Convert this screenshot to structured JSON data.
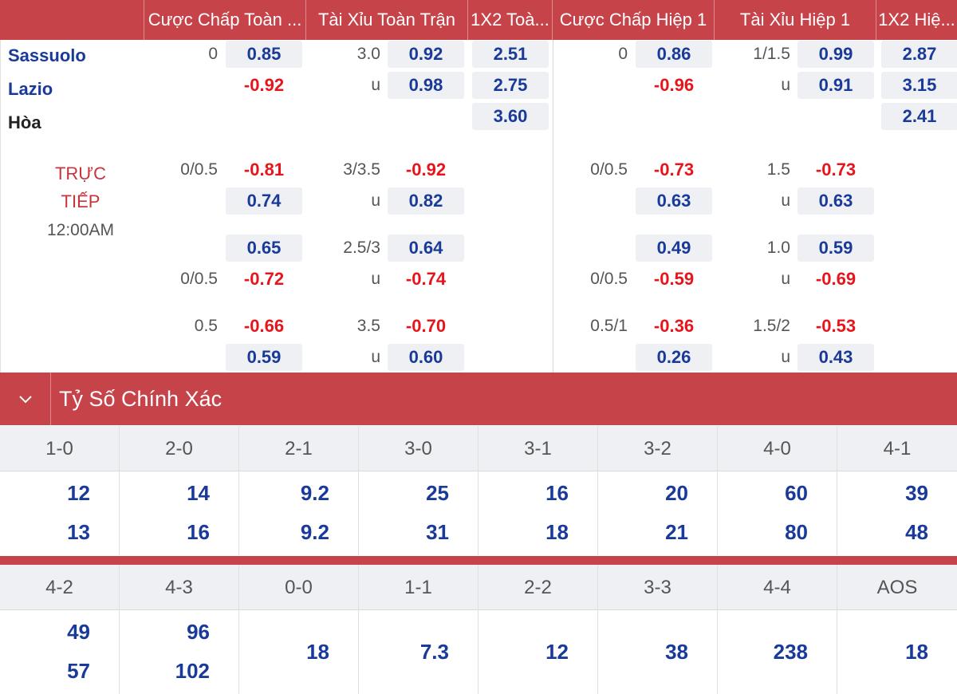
{
  "header": {
    "columns": [
      "Cược Chấp Toàn ...",
      "Tài Xỉu Toàn Trận",
      "1X2 Toà...",
      "Cược Chấp Hiệp 1",
      "Tài Xỉu Hiệp 1",
      "1X2 Hiệ..."
    ]
  },
  "teams": {
    "home": "Sassuolo",
    "away": "Lazio",
    "draw": "Hòa"
  },
  "status": {
    "live_line1": "TRỰC",
    "live_line2": "TIẾP",
    "time": "12:00AM"
  },
  "odds": {
    "main": {
      "ft_hdp_line": "0",
      "ft_hdp_home": "0.85",
      "ft_hdp_away": "-0.92",
      "ft_ou_line": "3.0",
      "ft_ou_over": "0.92",
      "ft_ou_u": "u",
      "ft_ou_under": "0.98",
      "ft_1x2_home": "2.51",
      "ft_1x2_away": "2.75",
      "ft_1x2_draw": "3.60",
      "h1_hdp_line": "0",
      "h1_hdp_home": "0.86",
      "h1_hdp_away": "-0.96",
      "h1_ou_line": "1/1.5",
      "h1_ou_over": "0.99",
      "h1_ou_u": "u",
      "h1_ou_under": "0.91",
      "h1_1x2_home": "2.87",
      "h1_1x2_away": "3.15",
      "h1_1x2_draw": "2.41"
    },
    "alt1": {
      "ft_hdp_line": "0/0.5",
      "ft_hdp_home": "-0.81",
      "ft_hdp_away": "0.74",
      "ft_ou_line": "3/3.5",
      "ft_ou_over": "-0.92",
      "ft_ou_u": "u",
      "ft_ou_under": "0.82",
      "h1_hdp_line": "0/0.5",
      "h1_hdp_home": "-0.73",
      "h1_hdp_away": "0.63",
      "h1_ou_line": "1.5",
      "h1_ou_over": "-0.73",
      "h1_ou_u": "u",
      "h1_ou_under": "0.63"
    },
    "alt2": {
      "ft_hdp_home": "0.65",
      "ft_hdp_line": "0/0.5",
      "ft_hdp_away": "-0.72",
      "ft_ou_line": "2.5/3",
      "ft_ou_over": "0.64",
      "ft_ou_u": "u",
      "ft_ou_under": "-0.74",
      "h1_hdp_home": "0.49",
      "h1_hdp_line": "0/0.5",
      "h1_hdp_away": "-0.59",
      "h1_ou_line": "1.0",
      "h1_ou_over": "0.59",
      "h1_ou_u": "u",
      "h1_ou_under": "-0.69"
    },
    "alt3": {
      "ft_hdp_line": "0.5",
      "ft_hdp_home": "-0.66",
      "ft_hdp_away": "0.59",
      "ft_ou_line": "3.5",
      "ft_ou_over": "-0.70",
      "ft_ou_u": "u",
      "ft_ou_under": "0.60",
      "h1_hdp_line": "0.5/1",
      "h1_hdp_home": "-0.36",
      "h1_hdp_away": "0.26",
      "h1_ou_line": "1.5/2",
      "h1_ou_over": "-0.53",
      "h1_ou_u": "u",
      "h1_ou_under": "0.43"
    }
  },
  "correct_score": {
    "title": "Tỷ Số Chính Xác",
    "toggle_icon": "chevron-down-icon",
    "row1": [
      {
        "label": "1-0",
        "v1": "12",
        "v2": "13"
      },
      {
        "label": "2-0",
        "v1": "14",
        "v2": "16"
      },
      {
        "label": "2-1",
        "v1": "9.2",
        "v2": "9.2"
      },
      {
        "label": "3-0",
        "v1": "25",
        "v2": "31"
      },
      {
        "label": "3-1",
        "v1": "16",
        "v2": "18"
      },
      {
        "label": "3-2",
        "v1": "20",
        "v2": "21"
      },
      {
        "label": "4-0",
        "v1": "60",
        "v2": "80"
      },
      {
        "label": "4-1",
        "v1": "39",
        "v2": "48"
      }
    ],
    "row2": [
      {
        "label": "4-2",
        "v1": "49",
        "v2": "57"
      },
      {
        "label": "4-3",
        "v1": "96",
        "v2": "102"
      },
      {
        "label": "0-0",
        "v": "18"
      },
      {
        "label": "1-1",
        "v": "7.3"
      },
      {
        "label": "2-2",
        "v": "12"
      },
      {
        "label": "3-3",
        "v": "38"
      },
      {
        "label": "4-4",
        "v": "238"
      },
      {
        "label": "AOS",
        "v": "18"
      }
    ]
  },
  "colors": {
    "header_bg": "#c7434a",
    "odds_blue": "#1a3a9a",
    "odds_red": "#e8141c",
    "live_red": "#c7343c"
  }
}
